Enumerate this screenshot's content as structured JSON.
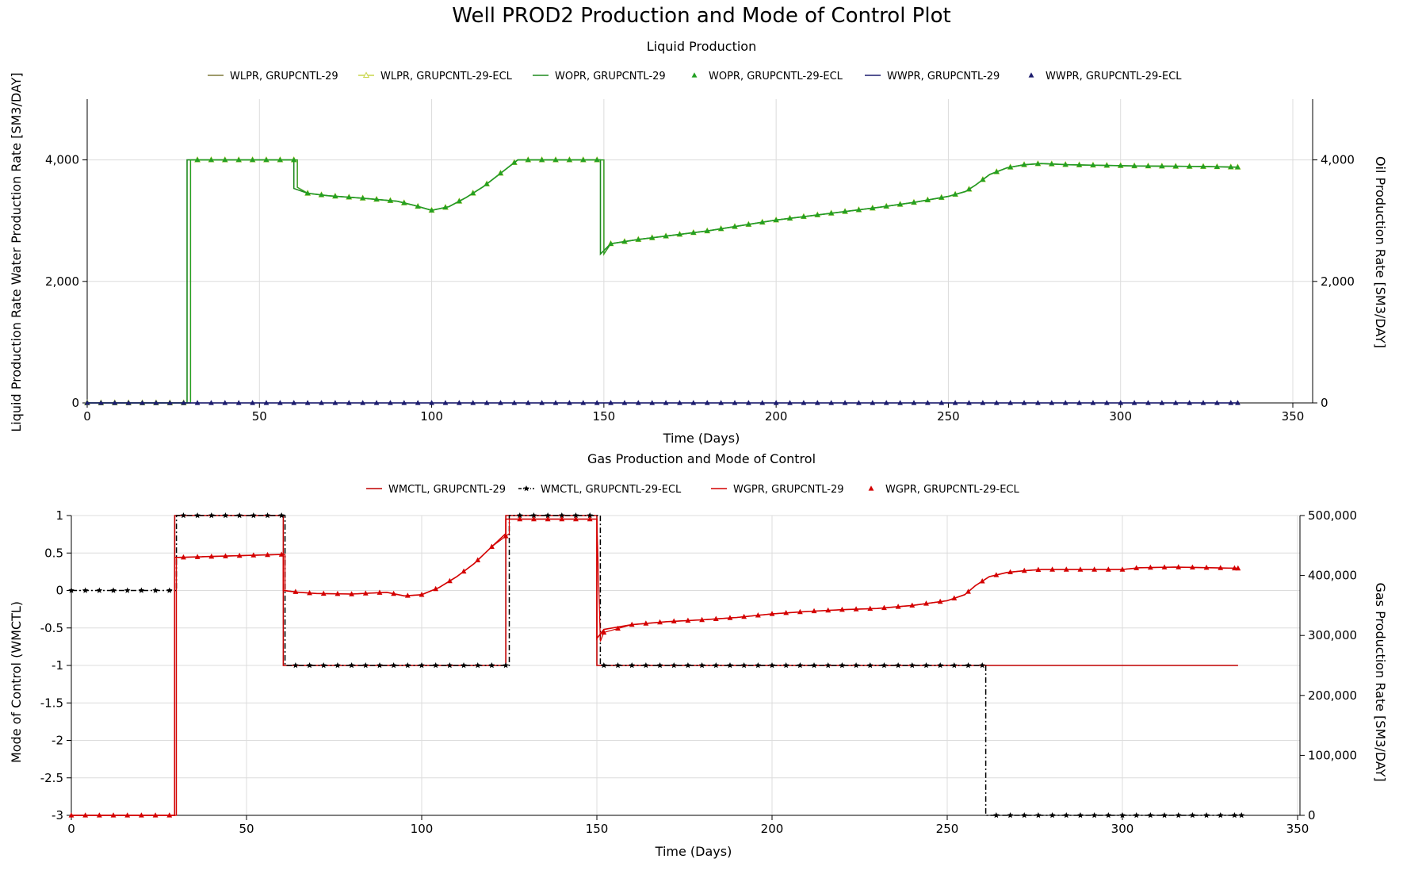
{
  "figure": {
    "title": "Well PROD2 Production and Mode of Control Plot"
  },
  "chart_data": [
    {
      "type": "line",
      "title": "Liquid Production",
      "xlabel": "Time (Days)",
      "ylabel_left": "Liquid Production Rate Water Production Rate [SM3/DAY]",
      "ylabel_right": "Oil Production Rate [SM3/DAY]",
      "xlim": [
        0,
        350
      ],
      "ylim_left": [
        0,
        5000
      ],
      "ylim_right": [
        0,
        5000
      ],
      "xticks": [
        "0",
        "50",
        "100",
        "150",
        "200",
        "250",
        "300",
        "350"
      ],
      "yticks_left": [
        "0",
        "2,000",
        "4,000"
      ],
      "yticks_right": [
        "0",
        "2,000",
        "4,000"
      ],
      "grid": true,
      "legend_position": "top",
      "colors": {
        "wlpr": "#7f7a3a",
        "wlpr_ecl": "#c8d64a",
        "wopr": "#1f8a1f",
        "wopr_ecl": "#23a023",
        "wwpr": "#1c1c6e",
        "wwpr_ecl": "#1c1c6e"
      },
      "series": [
        {
          "name": "WLPR, GRUPCNTL-29",
          "marker": "none",
          "x": [
            0,
            30,
            30,
            61,
            61,
            64,
            70,
            80,
            90,
            95,
            100,
            105,
            110,
            115,
            120,
            125,
            150,
            150,
            152,
            160,
            170,
            180,
            190,
            200,
            210,
            220,
            230,
            240,
            250,
            255,
            258,
            262,
            267,
            272,
            277,
            285,
            295,
            305,
            315,
            325,
            334
          ],
          "y": [
            0,
            0,
            4000,
            4000,
            3550,
            3450,
            3410,
            3370,
            3320,
            3250,
            3170,
            3230,
            3380,
            3560,
            3780,
            4000,
            4000,
            2450,
            2620,
            2690,
            2760,
            2830,
            2920,
            3010,
            3080,
            3150,
            3220,
            3300,
            3400,
            3480,
            3590,
            3760,
            3870,
            3920,
            3940,
            3920,
            3910,
            3900,
            3895,
            3890,
            3880
          ]
        },
        {
          "name": "WLPR, GRUPCNTL-29-ECL",
          "marker": "open-triangle",
          "x": [
            0,
            30,
            30,
            61,
            61,
            64,
            70,
            80,
            90,
            95,
            100,
            105,
            110,
            115,
            120,
            125,
            150,
            150,
            152,
            160,
            170,
            180,
            190,
            200,
            210,
            220,
            230,
            240,
            250,
            255,
            258,
            262,
            267,
            272,
            277,
            285,
            295,
            305,
            315,
            325,
            334
          ],
          "y": [
            0,
            0,
            4000,
            4000,
            3550,
            3450,
            3410,
            3370,
            3320,
            3250,
            3170,
            3230,
            3380,
            3560,
            3780,
            4000,
            4000,
            2450,
            2620,
            2690,
            2760,
            2830,
            2920,
            3010,
            3080,
            3150,
            3220,
            3300,
            3400,
            3480,
            3590,
            3760,
            3870,
            3920,
            3940,
            3920,
            3910,
            3900,
            3895,
            3890,
            3880
          ]
        },
        {
          "name": "WOPR, GRUPCNTL-29",
          "marker": "none",
          "x": [
            0,
            29,
            29,
            60,
            60,
            64,
            70,
            80,
            90,
            95,
            100,
            105,
            110,
            115,
            120,
            125,
            149,
            149,
            152,
            160,
            170,
            180,
            190,
            200,
            210,
            220,
            230,
            240,
            250,
            255,
            258,
            262,
            267,
            272,
            277,
            285,
            295,
            305,
            315,
            325,
            334
          ],
          "y": [
            0,
            0,
            4000,
            4000,
            3530,
            3450,
            3410,
            3370,
            3320,
            3250,
            3170,
            3230,
            3380,
            3560,
            3780,
            4000,
            4000,
            2450,
            2620,
            2690,
            2760,
            2830,
            2920,
            3010,
            3080,
            3150,
            3220,
            3300,
            3400,
            3480,
            3590,
            3760,
            3870,
            3920,
            3940,
            3920,
            3910,
            3900,
            3895,
            3890,
            3880
          ]
        },
        {
          "name": "WOPR, GRUPCNTL-29-ECL",
          "marker": "filled-triangle",
          "x": [
            0,
            30,
            30,
            61,
            61,
            64,
            70,
            80,
            90,
            95,
            100,
            105,
            110,
            115,
            120,
            125,
            150,
            150,
            152,
            160,
            170,
            180,
            190,
            200,
            210,
            220,
            230,
            240,
            250,
            255,
            258,
            262,
            267,
            272,
            277,
            285,
            295,
            305,
            315,
            325,
            334
          ],
          "y": [
            0,
            0,
            4000,
            4000,
            3550,
            3450,
            3410,
            3370,
            3320,
            3250,
            3170,
            3230,
            3380,
            3560,
            3780,
            4000,
            4000,
            2450,
            2620,
            2690,
            2760,
            2830,
            2920,
            3010,
            3080,
            3150,
            3220,
            3300,
            3400,
            3480,
            3590,
            3760,
            3870,
            3920,
            3940,
            3920,
            3910,
            3900,
            3895,
            3890,
            3880
          ]
        },
        {
          "name": "WWPR, GRUPCNTL-29",
          "marker": "none",
          "x": [
            0,
            334
          ],
          "y": [
            0,
            0
          ]
        },
        {
          "name": "WWPR, GRUPCNTL-29-ECL",
          "marker": "filled-triangle",
          "x": [
            0,
            334
          ],
          "y": [
            0,
            0
          ]
        }
      ]
    },
    {
      "type": "line",
      "title": "Gas Production and Mode of Control",
      "xlabel": "Time (Days)",
      "ylabel_left": "Mode of Control (WMCTL)",
      "ylabel_right": "Gas Production Rate [SM3/DAY]",
      "xlim": [
        0,
        350
      ],
      "ylim_left": [
        -3,
        1
      ],
      "ylim_right": [
        0,
        500000
      ],
      "xticks": [
        "0",
        "50",
        "100",
        "150",
        "200",
        "250",
        "300",
        "350"
      ],
      "yticks_left": [
        "1",
        "0.5",
        "0",
        "-0.5",
        "-1",
        "-1.5",
        "-2",
        "-2.5",
        "-3"
      ],
      "yticks_right": [
        "500,000",
        "400,000",
        "300,000",
        "200,000",
        "100,000",
        "0"
      ],
      "grid": true,
      "legend_position": "top",
      "colors": {
        "wmctl": "#c00000",
        "wmctl_ecl": "#000000",
        "wgpr": "#d40000",
        "wgpr_ecl": "#d40000"
      },
      "series": [
        {
          "name": "WMCTL, GRUPCNTL-29",
          "marker": "none",
          "x": [
            0,
            29.5,
            29.5,
            60.5,
            60.5,
            124,
            124,
            150,
            150,
            333
          ],
          "y": [
            -3,
            -3,
            1,
            1,
            -1,
            -1,
            1,
            1,
            -1,
            -1
          ]
        },
        {
          "name": "WMCTL, GRUPCNTL-29-ECL",
          "marker": "star",
          "x": [
            0,
            30,
            30,
            61,
            61,
            125,
            125,
            151,
            151,
            261,
            261,
            334
          ],
          "y": [
            0,
            0,
            1,
            1,
            -1,
            -1,
            1,
            1,
            -1,
            -1,
            -3,
            -3
          ]
        },
        {
          "name": "WGPR, GRUPCNTL-29",
          "marker": "none",
          "x": [
            0,
            29.5,
            29.5,
            60,
            60.5,
            60.5,
            65,
            70,
            80,
            90,
            95,
            100,
            105,
            110,
            115,
            120,
            124,
            124,
            150,
            150,
            152,
            160,
            170,
            180,
            190,
            200,
            210,
            220,
            230,
            240,
            250,
            255,
            258,
            262,
            267,
            272,
            277,
            285,
            295,
            300,
            305,
            315,
            325,
            333
          ],
          "y": [
            0,
            0,
            430000,
            435000,
            435000,
            375000,
            372000,
            370000,
            369000,
            372000,
            366000,
            368000,
            380000,
            398000,
            420000,
            448000,
            470000,
            494000,
            494000,
            295000,
            310000,
            318000,
            323000,
            326000,
            330000,
            336000,
            340000,
            343000,
            345000,
            350000,
            358000,
            368000,
            383000,
            398000,
            405000,
            408000,
            410000,
            410000,
            410000,
            410000,
            413000,
            414000,
            413000,
            412000
          ]
        },
        {
          "name": "WGPR, GRUPCNTL-29-ECL",
          "marker": "filled-triangle",
          "x": [
            0,
            30,
            30,
            60,
            61,
            61,
            65,
            70,
            80,
            90,
            95,
            100,
            105,
            110,
            115,
            120,
            125,
            125,
            150,
            151,
            152,
            160,
            170,
            180,
            190,
            200,
            210,
            220,
            230,
            240,
            250,
            255,
            258,
            262,
            267,
            272,
            277,
            285,
            295,
            300,
            305,
            315,
            325,
            333
          ],
          "y": [
            0,
            0,
            430000,
            435000,
            435000,
            375000,
            372000,
            370000,
            369000,
            372000,
            366000,
            368000,
            380000,
            398000,
            420000,
            448000,
            470000,
            494000,
            494000,
            290000,
            305000,
            318000,
            323000,
            326000,
            330000,
            336000,
            340000,
            343000,
            345000,
            350000,
            358000,
            368000,
            383000,
            398000,
            405000,
            408000,
            410000,
            410000,
            410000,
            410000,
            413000,
            414000,
            413000,
            412000
          ]
        }
      ]
    }
  ]
}
